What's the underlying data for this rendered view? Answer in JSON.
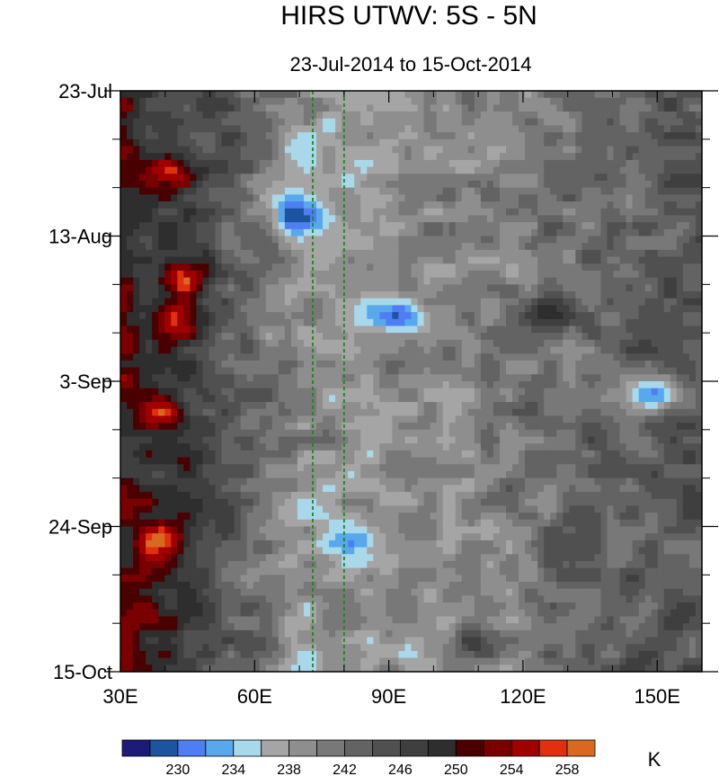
{
  "chart_data": {
    "type": "heatmap",
    "title": "HIRS UTWV: 5S - 5N",
    "subtitle": "23-Jul-2014 to 15-Oct-2014",
    "xlabel": "",
    "ylabel": "",
    "xlim": [
      30,
      160
    ],
    "x_ticks": [
      {
        "value": 30,
        "label": "30E"
      },
      {
        "value": 60,
        "label": "60E"
      },
      {
        "value": 90,
        "label": "90E"
      },
      {
        "value": 120,
        "label": "120E"
      },
      {
        "value": 150,
        "label": "150E"
      }
    ],
    "ylim_days_from_top": [
      0,
      84
    ],
    "y_ticks": [
      {
        "day": 0,
        "label": "23-Jul"
      },
      {
        "day": 21,
        "label": "13-Aug"
      },
      {
        "day": 42,
        "label": "3-Sep"
      },
      {
        "day": 63,
        "label": "24-Sep"
      },
      {
        "day": 84,
        "label": "15-Oct"
      }
    ],
    "reference_lines": [
      {
        "x": 73,
        "color": "#1a8a1a",
        "style": "dashed"
      },
      {
        "x": 80,
        "color": "#1a8a1a",
        "style": "dashed"
      }
    ],
    "colorbar": {
      "unit": "K",
      "levels": [
        228,
        230,
        232,
        234,
        236,
        238,
        240,
        242,
        244,
        246,
        248,
        250,
        252,
        254,
        256,
        258
      ],
      "labels": [
        {
          "value": 230,
          "label": "230"
        },
        {
          "value": 234,
          "label": "234"
        },
        {
          "value": 238,
          "label": "238"
        },
        {
          "value": 242,
          "label": "242"
        },
        {
          "value": 246,
          "label": "246"
        },
        {
          "value": 250,
          "label": "250"
        },
        {
          "value": 254,
          "label": "254"
        },
        {
          "value": 258,
          "label": "258"
        }
      ],
      "colors": [
        "#1c1c78",
        "#1c54a0",
        "#4f7ef2",
        "#58a8ec",
        "#a8d8ea",
        "#a5a5a5",
        "#8e8e8e",
        "#787878",
        "#636363",
        "#505050",
        "#3f3f3f",
        "#2e2e2e",
        "#4a0000",
        "#7a0000",
        "#a00000",
        "#e03010",
        "#d86a20"
      ]
    },
    "features": [
      {
        "lon": 42,
        "day": 12,
        "value": 254
      },
      {
        "lon": 44,
        "day": 27,
        "value": 257
      },
      {
        "lon": 42,
        "day": 33,
        "value": 255
      },
      {
        "lon": 40,
        "day": 65,
        "value": 256
      },
      {
        "lon": 40,
        "day": 47,
        "value": 253
      },
      {
        "lon": 70,
        "day": 18,
        "value": 234
      },
      {
        "lon": 93,
        "day": 33,
        "value": 233
      },
      {
        "lon": 150,
        "day": 44,
        "value": 233
      },
      {
        "lon": 82,
        "day": 65,
        "value": 235
      },
      {
        "lon": 125,
        "day": 32,
        "value": 250
      },
      {
        "lon": 108,
        "day": 80,
        "value": 251
      }
    ]
  }
}
